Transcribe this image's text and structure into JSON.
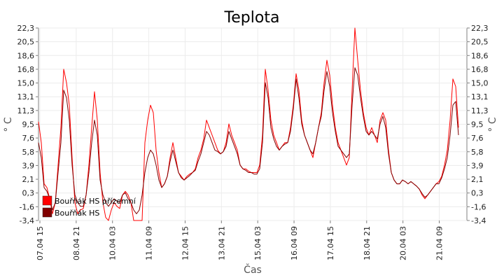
{
  "chart_data": {
    "type": "line",
    "title": "Teplota",
    "xlabel": "Čas",
    "ylabel": "° C",
    "ylabel_right": "° C",
    "ylim": [
      -3.4,
      22.3
    ],
    "y_ticks": [
      "22,3",
      "20,5",
      "18,6",
      "16,8",
      "15,0",
      "13,1",
      "11,3",
      "9,5",
      "7,6",
      "5,8",
      "3,9",
      "2,1",
      "0,3",
      "-1,6",
      "-3,4"
    ],
    "x_ticks": [
      "07.04 15",
      "08.04 21",
      "10.04 03",
      "11.04 09",
      "12.04 15",
      "13.04 21",
      "15.04 03",
      "16.04 09",
      "17.04 15",
      "18.04 21",
      "20.04 03",
      "21.04 09"
    ],
    "x_range_hours": [
      0,
      306
    ],
    "grid": true,
    "legend_position": "bottom-left",
    "series": [
      {
        "name": "Bouřňák HS přízemní",
        "color": "#ff0000",
        "points": [
          [
            0,
            9.8
          ],
          [
            2,
            7
          ],
          [
            4,
            1.5
          ],
          [
            6,
            1
          ],
          [
            8,
            -0.5
          ],
          [
            10,
            -2.5
          ],
          [
            12,
            -1
          ],
          [
            14,
            4
          ],
          [
            16,
            9
          ],
          [
            18,
            16.8
          ],
          [
            20,
            15
          ],
          [
            22,
            12
          ],
          [
            24,
            5
          ],
          [
            26,
            -1
          ],
          [
            28,
            -2.5
          ],
          [
            30,
            -2
          ],
          [
            32,
            -1.8
          ],
          [
            34,
            0
          ],
          [
            36,
            4
          ],
          [
            38,
            9
          ],
          [
            40,
            13.8
          ],
          [
            42,
            10
          ],
          [
            44,
            3
          ],
          [
            46,
            -1
          ],
          [
            48,
            -3
          ],
          [
            50,
            -3.4
          ],
          [
            52,
            -2
          ],
          [
            54,
            -1
          ],
          [
            56,
            -1.5
          ],
          [
            58,
            -1.8
          ],
          [
            60,
            0
          ],
          [
            62,
            0.5
          ],
          [
            64,
            0
          ],
          [
            66,
            -1
          ],
          [
            68,
            -3.4
          ],
          [
            72,
            -3.4
          ],
          [
            74,
            -3.4
          ],
          [
            76,
            7
          ],
          [
            78,
            10
          ],
          [
            80,
            12
          ],
          [
            82,
            11
          ],
          [
            84,
            6
          ],
          [
            86,
            3
          ],
          [
            88,
            1
          ],
          [
            90,
            1.5
          ],
          [
            92,
            2.5
          ],
          [
            94,
            5
          ],
          [
            96,
            7
          ],
          [
            98,
            5
          ],
          [
            100,
            3
          ],
          [
            102,
            2.5
          ],
          [
            104,
            2
          ],
          [
            106,
            2.5
          ],
          [
            108,
            2.8
          ],
          [
            110,
            3
          ],
          [
            112,
            3.5
          ],
          [
            114,
            5
          ],
          [
            116,
            6
          ],
          [
            118,
            7.5
          ],
          [
            120,
            10
          ],
          [
            122,
            9
          ],
          [
            124,
            8
          ],
          [
            126,
            7
          ],
          [
            128,
            6
          ],
          [
            130,
            5.5
          ],
          [
            132,
            5.8
          ],
          [
            134,
            7
          ],
          [
            136,
            9.5
          ],
          [
            138,
            8
          ],
          [
            140,
            7
          ],
          [
            142,
            6
          ],
          [
            144,
            4
          ],
          [
            146,
            3.5
          ],
          [
            148,
            3.5
          ],
          [
            150,
            3.2
          ],
          [
            152,
            3
          ],
          [
            154,
            3
          ],
          [
            156,
            3
          ],
          [
            158,
            4
          ],
          [
            160,
            8
          ],
          [
            162,
            16.8
          ],
          [
            164,
            14
          ],
          [
            166,
            10
          ],
          [
            168,
            8
          ],
          [
            170,
            7
          ],
          [
            172,
            6
          ],
          [
            174,
            6.5
          ],
          [
            176,
            7
          ],
          [
            178,
            7
          ],
          [
            180,
            9
          ],
          [
            182,
            12
          ],
          [
            184,
            16.2
          ],
          [
            186,
            14
          ],
          [
            188,
            10
          ],
          [
            190,
            8
          ],
          [
            192,
            7
          ],
          [
            194,
            6
          ],
          [
            196,
            5
          ],
          [
            198,
            7
          ],
          [
            200,
            9
          ],
          [
            202,
            11
          ],
          [
            204,
            15
          ],
          [
            206,
            18
          ],
          [
            208,
            16
          ],
          [
            210,
            12
          ],
          [
            212,
            9
          ],
          [
            214,
            7
          ],
          [
            216,
            6
          ],
          [
            218,
            5
          ],
          [
            220,
            4
          ],
          [
            222,
            5
          ],
          [
            224,
            14
          ],
          [
            226,
            22.3
          ],
          [
            228,
            18
          ],
          [
            230,
            14
          ],
          [
            232,
            11
          ],
          [
            234,
            9
          ],
          [
            236,
            8
          ],
          [
            238,
            9
          ],
          [
            240,
            8
          ],
          [
            242,
            7
          ],
          [
            244,
            10
          ],
          [
            246,
            11
          ],
          [
            248,
            10
          ],
          [
            250,
            6
          ],
          [
            252,
            3
          ],
          [
            254,
            2
          ],
          [
            256,
            1.5
          ],
          [
            258,
            1.5
          ],
          [
            260,
            2
          ],
          [
            262,
            1.8
          ],
          [
            264,
            1.5
          ],
          [
            266,
            1.8
          ],
          [
            268,
            1.5
          ],
          [
            270,
            1.2
          ],
          [
            272,
            0.8
          ],
          [
            274,
            0
          ],
          [
            276,
            -0.5
          ],
          [
            278,
            0
          ],
          [
            280,
            0.5
          ],
          [
            282,
            1
          ],
          [
            284,
            1.5
          ],
          [
            286,
            1.8
          ],
          [
            288,
            2.5
          ],
          [
            290,
            4
          ],
          [
            292,
            6
          ],
          [
            294,
            10
          ],
          [
            296,
            15.5
          ],
          [
            298,
            14.5
          ],
          [
            300,
            9
          ]
        ]
      },
      {
        "name": "Bouřňák HS",
        "color": "#800000",
        "points": [
          [
            0,
            7
          ],
          [
            2,
            5
          ],
          [
            4,
            1
          ],
          [
            6,
            0.5
          ],
          [
            8,
            -0.5
          ],
          [
            10,
            -2
          ],
          [
            12,
            -1
          ],
          [
            14,
            3
          ],
          [
            16,
            7
          ],
          [
            18,
            14
          ],
          [
            20,
            13
          ],
          [
            22,
            10
          ],
          [
            24,
            4
          ],
          [
            26,
            0
          ],
          [
            28,
            -1
          ],
          [
            30,
            -1.5
          ],
          [
            32,
            -1.5
          ],
          [
            34,
            0
          ],
          [
            36,
            3
          ],
          [
            38,
            7
          ],
          [
            40,
            10
          ],
          [
            42,
            8
          ],
          [
            44,
            2
          ],
          [
            46,
            0
          ],
          [
            48,
            -1
          ],
          [
            50,
            -1.5
          ],
          [
            52,
            -1
          ],
          [
            54,
            -0.5
          ],
          [
            56,
            -0.8
          ],
          [
            58,
            -1
          ],
          [
            60,
            0
          ],
          [
            62,
            0.3
          ],
          [
            64,
            -0.5
          ],
          [
            66,
            -1
          ],
          [
            68,
            -2
          ],
          [
            70,
            -2.5
          ],
          [
            72,
            -2
          ],
          [
            74,
            0
          ],
          [
            76,
            3
          ],
          [
            78,
            5
          ],
          [
            80,
            6
          ],
          [
            82,
            5.5
          ],
          [
            84,
            4
          ],
          [
            86,
            2
          ],
          [
            88,
            1
          ],
          [
            90,
            1.5
          ],
          [
            92,
            2.5
          ],
          [
            94,
            4.5
          ],
          [
            96,
            6
          ],
          [
            98,
            4.5
          ],
          [
            100,
            3
          ],
          [
            102,
            2.3
          ],
          [
            104,
            2
          ],
          [
            106,
            2.3
          ],
          [
            108,
            2.6
          ],
          [
            110,
            3
          ],
          [
            112,
            3.3
          ],
          [
            114,
            4.5
          ],
          [
            116,
            5.5
          ],
          [
            118,
            7
          ],
          [
            120,
            8.5
          ],
          [
            122,
            8
          ],
          [
            124,
            7
          ],
          [
            126,
            6
          ],
          [
            128,
            5.8
          ],
          [
            130,
            5.5
          ],
          [
            132,
            5.8
          ],
          [
            134,
            6.5
          ],
          [
            136,
            8.5
          ],
          [
            138,
            7.5
          ],
          [
            140,
            6.5
          ],
          [
            142,
            5.5
          ],
          [
            144,
            4
          ],
          [
            146,
            3.5
          ],
          [
            148,
            3.3
          ],
          [
            150,
            3
          ],
          [
            152,
            3
          ],
          [
            154,
            2.8
          ],
          [
            156,
            2.8
          ],
          [
            158,
            3.5
          ],
          [
            160,
            7
          ],
          [
            162,
            15
          ],
          [
            164,
            13
          ],
          [
            166,
            9
          ],
          [
            168,
            7.5
          ],
          [
            170,
            6.5
          ],
          [
            172,
            6
          ],
          [
            174,
            6.5
          ],
          [
            176,
            6.8
          ],
          [
            178,
            7
          ],
          [
            180,
            8.5
          ],
          [
            182,
            11.5
          ],
          [
            184,
            15.5
          ],
          [
            186,
            13
          ],
          [
            188,
            9.5
          ],
          [
            190,
            8
          ],
          [
            192,
            7
          ],
          [
            194,
            6
          ],
          [
            196,
            5.5
          ],
          [
            198,
            7
          ],
          [
            200,
            9
          ],
          [
            202,
            10.5
          ],
          [
            204,
            14
          ],
          [
            206,
            16.5
          ],
          [
            208,
            14.5
          ],
          [
            210,
            11
          ],
          [
            212,
            8.5
          ],
          [
            214,
            6.5
          ],
          [
            216,
            6
          ],
          [
            218,
            5.5
          ],
          [
            220,
            5
          ],
          [
            222,
            5.5
          ],
          [
            224,
            12
          ],
          [
            226,
            17
          ],
          [
            228,
            16
          ],
          [
            230,
            13
          ],
          [
            232,
            10.5
          ],
          [
            234,
            8.5
          ],
          [
            236,
            8
          ],
          [
            238,
            8.5
          ],
          [
            240,
            8
          ],
          [
            242,
            7.5
          ],
          [
            244,
            9.5
          ],
          [
            246,
            10.5
          ],
          [
            248,
            9
          ],
          [
            250,
            5.5
          ],
          [
            252,
            3
          ],
          [
            254,
            2
          ],
          [
            256,
            1.5
          ],
          [
            258,
            1.5
          ],
          [
            260,
            2
          ],
          [
            262,
            1.8
          ],
          [
            264,
            1.5
          ],
          [
            266,
            1.8
          ],
          [
            268,
            1.5
          ],
          [
            270,
            1.2
          ],
          [
            272,
            0.8
          ],
          [
            274,
            0.2
          ],
          [
            276,
            -0.3
          ],
          [
            278,
            0
          ],
          [
            280,
            0.5
          ],
          [
            282,
            1
          ],
          [
            284,
            1.5
          ],
          [
            286,
            1.5
          ],
          [
            288,
            2.3
          ],
          [
            290,
            3.5
          ],
          [
            292,
            5
          ],
          [
            294,
            8
          ],
          [
            296,
            12
          ],
          [
            298,
            12.5
          ],
          [
            300,
            8
          ]
        ]
      }
    ]
  }
}
